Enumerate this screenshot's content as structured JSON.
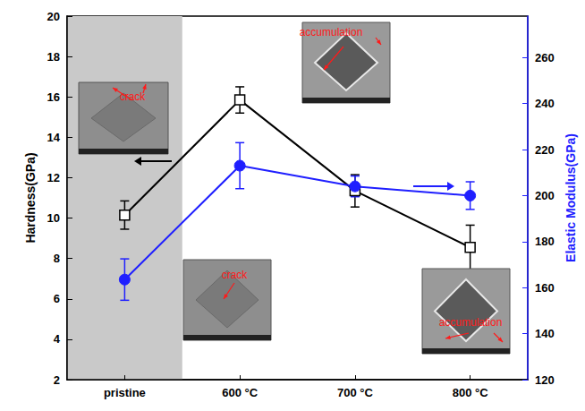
{
  "chart_data": {
    "type": "line",
    "categories": [
      "pristine",
      "600 °C",
      "700 °C",
      "800 °C"
    ],
    "y_label": "Hardness(GPa)",
    "y2_label": "Elastic Modulus(GPa)",
    "series": [
      {
        "values": [
          10.15,
          15.85,
          11.35,
          8.55
        ],
        "errors": [
          0.7,
          0.65,
          0.8,
          1.1
        ],
        "color": "#000000",
        "marker": "square"
      },
      {
        "axis": "y2",
        "values": [
          163.5,
          213,
          204,
          200
        ],
        "errors": [
          9,
          10,
          4.5,
          6
        ],
        "color": "#1f1fff",
        "marker": "circle"
      }
    ],
    "ylim": [
      2,
      20
    ],
    "yticks": [
      2,
      4,
      6,
      8,
      10,
      12,
      14,
      16,
      18,
      20
    ],
    "y2lim": [
      120,
      278
    ],
    "y2ticks": [
      120,
      140,
      160,
      180,
      200,
      220,
      240,
      260
    ],
    "grid": false,
    "annotations": [
      "crack",
      "crack",
      "accumulation",
      "accumulation"
    ]
  }
}
